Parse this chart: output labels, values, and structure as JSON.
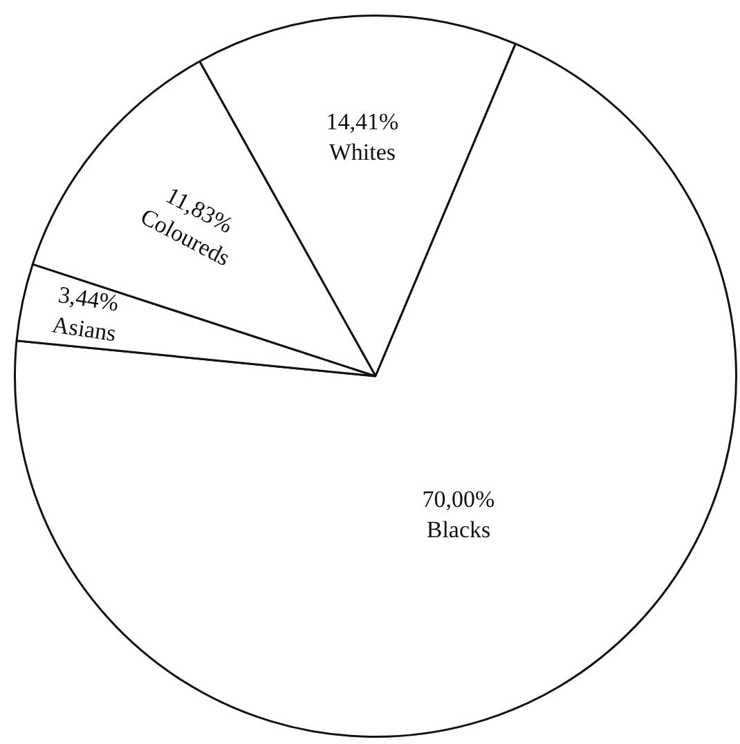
{
  "chart_data": {
    "type": "pie",
    "categories": [
      "Whites",
      "Blacks",
      "Asians",
      "Coloureds"
    ],
    "values": [
      14.41,
      70.0,
      3.44,
      11.83
    ],
    "colors": [
      "#ffffff",
      "#ffffff",
      "#ffffff",
      "#ffffff"
    ],
    "value_labels": [
      "14,41%",
      "70,00%",
      "3,44%",
      "11,83%"
    ],
    "legend": false
  }
}
